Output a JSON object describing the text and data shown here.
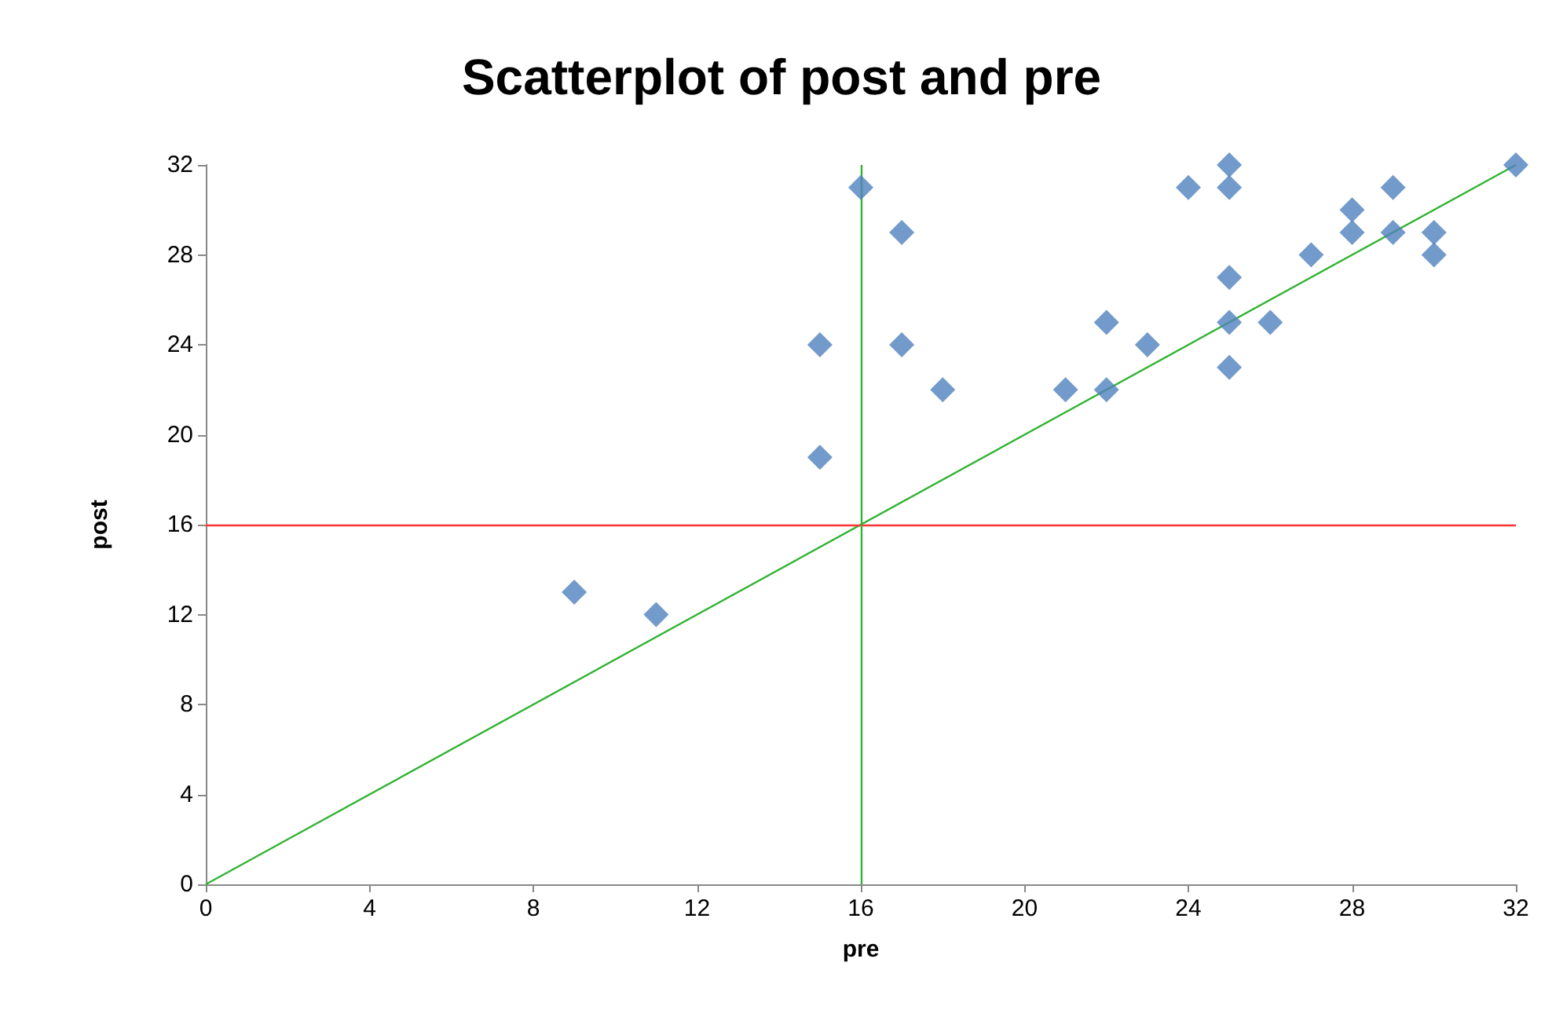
{
  "chart_data": {
    "type": "scatter",
    "title": "Scatterplot of post and pre",
    "xlabel": "pre",
    "ylabel": "post",
    "xlim": [
      0,
      32
    ],
    "ylim": [
      0,
      32
    ],
    "xticks": [
      0,
      4,
      8,
      12,
      16,
      20,
      24,
      28,
      32
    ],
    "yticks": [
      0,
      4,
      8,
      12,
      16,
      20,
      24,
      28,
      32
    ],
    "grid": false,
    "marker": "diamond",
    "series": [
      {
        "color": "#4f81bd",
        "x": [
          9,
          11,
          15,
          15,
          16,
          17,
          17,
          18,
          21,
          22,
          22,
          23,
          24,
          25,
          25,
          25,
          25,
          25,
          26,
          27,
          28,
          28,
          29,
          29,
          30,
          30,
          32
        ],
        "values": [
          13,
          12,
          19,
          24,
          31,
          29,
          24,
          22,
          22,
          25,
          22,
          24,
          31,
          32,
          31,
          27,
          25,
          23,
          25,
          28,
          30,
          29,
          31,
          29,
          29,
          28,
          32
        ]
      },
      {
        "type": "line",
        "color": "#33b333",
        "x": [
          0,
          32
        ],
        "values": [
          0,
          32
        ],
        "marker": "none",
        "line_style": "solid"
      }
    ],
    "ref_lines": [
      {
        "axis": "y",
        "value": 16,
        "color": "#ff3333"
      },
      {
        "axis": "x",
        "value": 16,
        "color": "#33b333"
      }
    ]
  }
}
